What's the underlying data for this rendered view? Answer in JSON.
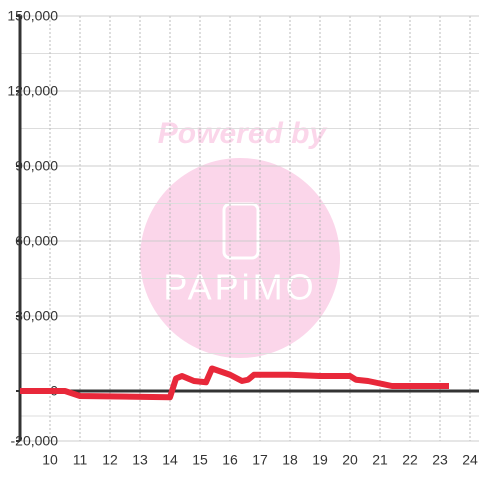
{
  "chart_data": {
    "type": "line",
    "x": [
      9,
      10.5,
      11,
      14,
      14.2,
      14.4,
      14.8,
      15.2,
      15.4,
      16,
      16.4,
      16.6,
      16.8,
      18,
      19,
      20,
      20.2,
      20.6,
      21,
      21.4,
      23.3
    ],
    "series": [
      {
        "color": "#e8283a",
        "values": [
          0,
          0,
          -2000,
          -2500,
          5000,
          6000,
          4000,
          3500,
          9000,
          6500,
          4000,
          4500,
          6500,
          6500,
          6000,
          6000,
          4500,
          4000,
          3000,
          2000,
          2000
        ]
      }
    ],
    "xlim": [
      9,
      24.3
    ],
    "xticks": [
      10,
      11,
      12,
      13,
      14,
      15,
      16,
      17,
      18,
      19,
      20,
      21,
      22,
      23,
      24
    ],
    "ylim": [
      -20000,
      150000
    ],
    "yticks": [
      {
        "value": -20000,
        "label": "-20,000"
      },
      0,
      {
        "value": 30000,
        "label": "30,000"
      },
      {
        "value": 60000,
        "label": "60,000"
      },
      {
        "value": 90000,
        "label": "90,000"
      },
      {
        "value": 120000,
        "label": "120,000"
      },
      {
        "value": 150000,
        "label": "150,000"
      }
    ],
    "y_minor_ticks": [
      -10000,
      15000,
      45000,
      75000,
      105000,
      135000
    ],
    "grid": true,
    "watermark": [
      "Powered by",
      "PAPiMO"
    ]
  }
}
